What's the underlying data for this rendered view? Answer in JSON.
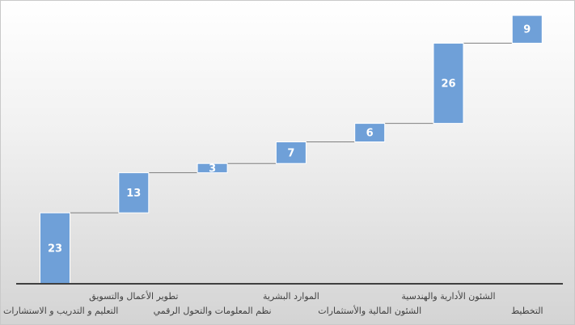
{
  "chart_data": {
    "type": "waterfall",
    "categories": [
      "التعليم و التدريب و الاستشارات",
      "تطوير الأعمال والتسويق",
      "نظم المعلومات والتحول الرقمي",
      "الموارد البشرية",
      "الشئون المالية والأستثمارات",
      "الشئون الأدارية والهندسية",
      "التخطيط"
    ],
    "values": [
      23,
      13,
      3,
      7,
      6,
      26,
      9
    ],
    "title": "",
    "xlabel": "",
    "ylabel": "",
    "ylim": [
      0,
      92
    ],
    "grid": false,
    "legend": "none",
    "colors": {
      "bar": "#6fa0d8",
      "label": "#ffffff",
      "axis": "#404040",
      "connector": "#7f7f7f",
      "category_text": "#404040"
    }
  }
}
